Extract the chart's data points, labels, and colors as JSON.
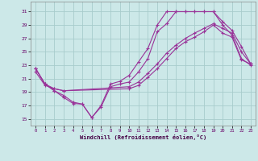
{
  "xlabel": "Windchill (Refroidissement éolien,°C)",
  "bg_color": "#cce8e8",
  "grid_color": "#a8cccc",
  "line_color": "#993399",
  "xlim_min": -0.5,
  "xlim_max": 23.5,
  "ylim_min": 14.0,
  "ylim_max": 32.5,
  "yticks": [
    15,
    17,
    19,
    21,
    23,
    25,
    27,
    29,
    31
  ],
  "xticks": [
    0,
    1,
    2,
    3,
    4,
    5,
    6,
    7,
    8,
    9,
    10,
    11,
    12,
    13,
    14,
    15,
    16,
    17,
    18,
    19,
    20,
    21,
    22,
    23
  ],
  "curves": [
    {
      "x": [
        0,
        1,
        2,
        3,
        4,
        5,
        6,
        7,
        8,
        9,
        10,
        11,
        12,
        13,
        14,
        15,
        16,
        17,
        18,
        19,
        20,
        21,
        22,
        23
      ],
      "y": [
        22.5,
        20.2,
        19.2,
        18.2,
        17.3,
        17.2,
        15.2,
        16.8,
        19.8,
        20.2,
        20.5,
        22.0,
        24.0,
        28.0,
        29.2,
        31.0,
        31.0,
        31.0,
        31.0,
        31.0,
        29.0,
        27.5,
        24.0,
        23.0
      ]
    },
    {
      "x": [
        0,
        1,
        2,
        3,
        4,
        5,
        6,
        7,
        8,
        9,
        10,
        11,
        12,
        13,
        14,
        15,
        16,
        17,
        18,
        19,
        20,
        21,
        22,
        23
      ],
      "y": [
        22.5,
        20.2,
        19.2,
        18.5,
        17.5,
        17.2,
        15.2,
        17.0,
        20.2,
        20.6,
        21.5,
        23.5,
        25.5,
        29.0,
        31.0,
        31.0,
        31.0,
        31.0,
        31.0,
        31.0,
        29.5,
        28.2,
        25.8,
        23.2
      ]
    },
    {
      "x": [
        0,
        1,
        2,
        3,
        10,
        11,
        12,
        13,
        14,
        15,
        16,
        17,
        18,
        19,
        20,
        21,
        22,
        23
      ],
      "y": [
        22.5,
        20.2,
        19.5,
        19.2,
        19.8,
        20.5,
        21.8,
        23.2,
        24.8,
        26.0,
        27.0,
        27.8,
        28.5,
        29.2,
        28.5,
        27.8,
        25.0,
        23.2
      ]
    },
    {
      "x": [
        0,
        1,
        2,
        3,
        10,
        11,
        12,
        13,
        14,
        15,
        16,
        17,
        18,
        19,
        20,
        21,
        22,
        23
      ],
      "y": [
        22.0,
        20.0,
        19.5,
        19.2,
        19.5,
        20.0,
        21.2,
        22.5,
        24.0,
        25.5,
        26.5,
        27.2,
        28.0,
        29.0,
        27.8,
        27.2,
        23.8,
        23.2
      ]
    }
  ]
}
